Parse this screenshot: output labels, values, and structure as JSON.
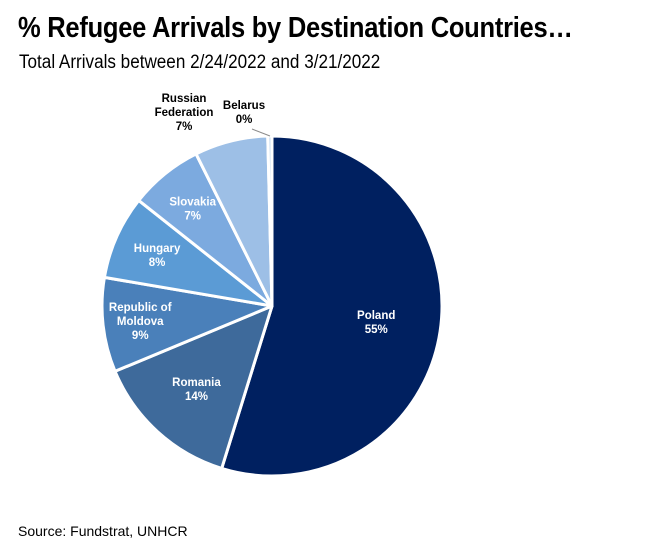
{
  "chart_data": {
    "type": "pie",
    "title": "% Refugee Arrivals by Destination Countries…",
    "subtitle": "Total Arrivals between 2/24/2022 and 3/21/2022",
    "source": "Source: Fundstrat, UNHCR",
    "slices": [
      {
        "label_lines": [
          "Poland"
        ],
        "value": 55,
        "value_label": "55%",
        "color": "#002060",
        "text_color": "#ffffff"
      },
      {
        "label_lines": [
          "Romania"
        ],
        "value": 14,
        "value_label": "14%",
        "color": "#3E6A9B",
        "text_color": "#ffffff"
      },
      {
        "label_lines": [
          "Republic of",
          "Moldova"
        ],
        "value": 9,
        "value_label": "9%",
        "color": "#4A80BA",
        "text_color": "#ffffff"
      },
      {
        "label_lines": [
          "Hungary"
        ],
        "value": 8,
        "value_label": "8%",
        "color": "#5B9BD5",
        "text_color": "#ffffff"
      },
      {
        "label_lines": [
          "Slovakia"
        ],
        "value": 7,
        "value_label": "7%",
        "color": "#7CAADF",
        "text_color": "#ffffff"
      },
      {
        "label_lines": [
          "Russian",
          "Federation"
        ],
        "value": 7,
        "value_label": "7%",
        "color": "#9DBFE6",
        "text_color": "#000000"
      },
      {
        "label_lines": [
          "Belarus"
        ],
        "value": 0.4,
        "value_label": "0%",
        "color": "#C9DCF0",
        "text_color": "#000000"
      }
    ]
  }
}
